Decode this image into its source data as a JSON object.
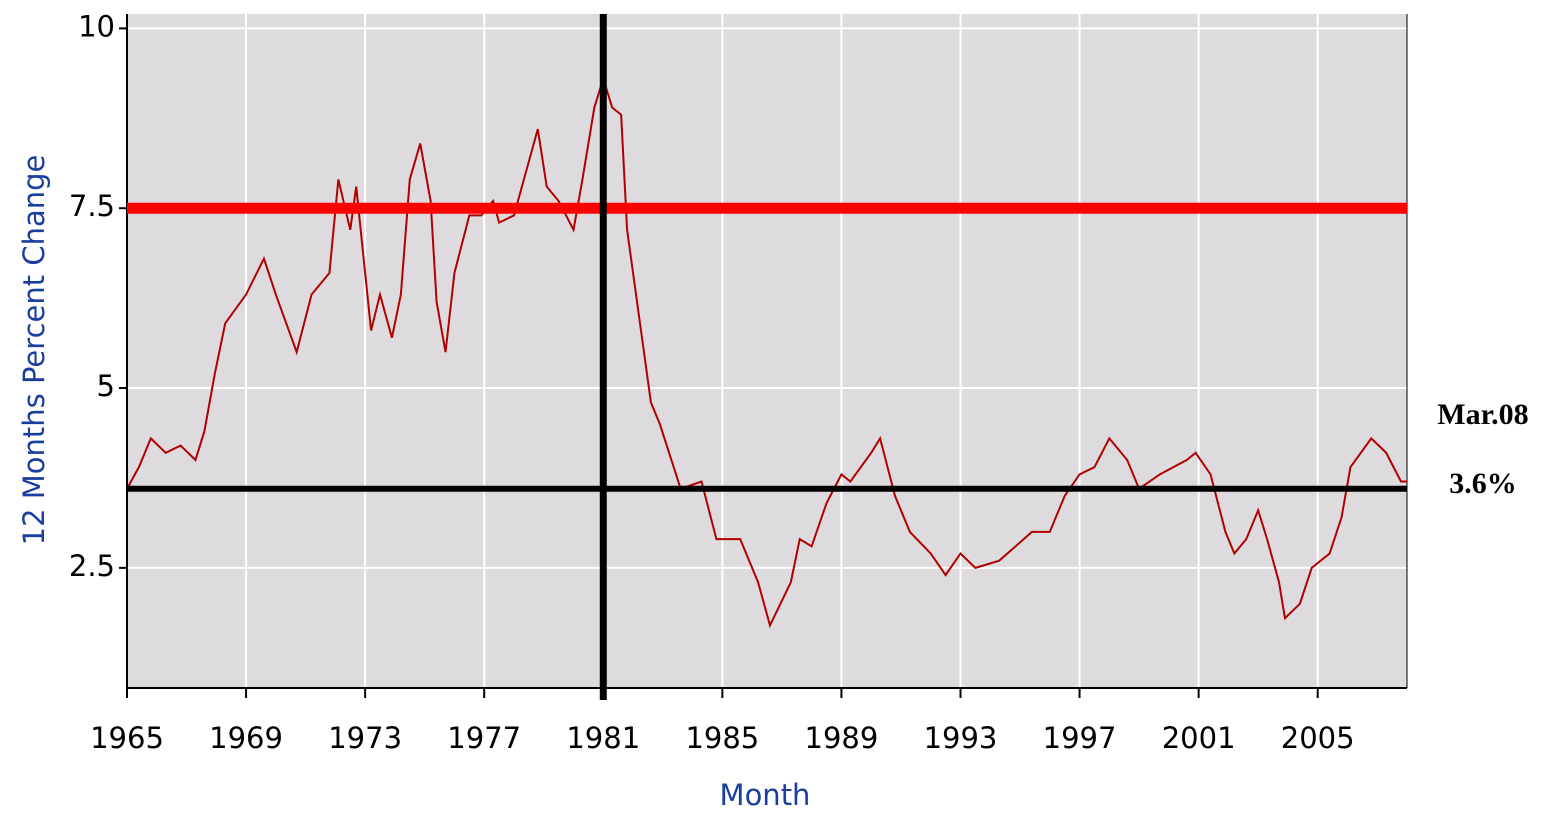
{
  "chart_data": {
    "type": "line",
    "ylabel": "12 Months Percent Change",
    "xlabel": "Month",
    "x": [
      1965,
      1965.4,
      1965.8,
      1966.3,
      1966.8,
      1967.3,
      1967.6,
      1967.95,
      1968.3,
      1969,
      1969.6,
      1970,
      1970.7,
      1971.2,
      1971.8,
      1972.1,
      1972.5,
      1972.7,
      1973.2,
      1973.5,
      1973.9,
      1974.2,
      1974.5,
      1974.85,
      1975.2,
      1975.4,
      1975.7,
      1976,
      1976.5,
      1976.9,
      1977.3,
      1977.5,
      1978,
      1978.4,
      1978.8,
      1979.1,
      1979.5,
      1980,
      1980.3,
      1980.7,
      1981,
      1981.3,
      1981.6,
      1981.8,
      1982.2,
      1982.6,
      1982.9,
      1983.6,
      1984.3,
      1984.8,
      1985.6,
      1986.2,
      1986.6,
      1987.3,
      1987.6,
      1988,
      1988.5,
      1989,
      1989.3,
      1990,
      1990.3,
      1990.8,
      1991.3,
      1992,
      1992.5,
      1993,
      1993.5,
      1994.3,
      1995.4,
      1996,
      1996.5,
      1997,
      1997.5,
      1998,
      1998.6,
      1999,
      1999.7,
      2000.6,
      2000.9,
      2001.4,
      2001.9,
      2002.2,
      2002.6,
      2003,
      2003.3,
      2003.7,
      2003.9,
      2004.4,
      2004.8,
      2005.4,
      2005.8,
      2006.1,
      2006.8,
      2007.3,
      2007.8,
      2008
    ],
    "series": [
      {
        "color": "#b00000",
        "values": [
          3.6,
          3.9,
          4.3,
          4.1,
          4.2,
          4.0,
          4.4,
          5.2,
          5.9,
          6.3,
          6.8,
          6.3,
          5.5,
          6.3,
          6.6,
          7.9,
          7.2,
          7.8,
          5.8,
          6.3,
          5.7,
          6.3,
          7.9,
          8.4,
          7.6,
          6.2,
          5.5,
          6.6,
          7.4,
          7.4,
          7.6,
          7.3,
          7.4,
          8.0,
          8.6,
          7.8,
          7.6,
          7.2,
          7.9,
          8.9,
          9.3,
          8.9,
          8.8,
          7.2,
          6.0,
          4.8,
          4.5,
          3.6,
          3.7,
          2.9,
          2.9,
          2.3,
          1.7,
          2.3,
          2.9,
          2.8,
          3.4,
          3.8,
          3.7,
          4.1,
          4.3,
          3.5,
          3.0,
          2.7,
          2.4,
          2.7,
          2.5,
          2.6,
          3.0,
          3.0,
          3.5,
          3.8,
          3.9,
          4.3,
          4.0,
          3.6,
          3.8,
          4.0,
          4.1,
          3.8,
          3.0,
          2.7,
          2.9,
          3.3,
          2.9,
          2.3,
          1.8,
          2.0,
          2.5,
          2.7,
          3.2,
          3.9,
          4.3,
          4.1,
          3.7,
          3.7
        ]
      }
    ],
    "xlim": [
      1965,
      2008
    ],
    "ylim": [
      0.83,
      10.2
    ],
    "xticks": [
      1965,
      1969,
      1973,
      1977,
      1981,
      1985,
      1989,
      1993,
      1997,
      2001,
      2005
    ],
    "yticks": [
      2.5,
      5,
      7.5,
      10
    ],
    "grid": true,
    "reference_lines": [
      {
        "y": 7.5,
        "color": "#ff0000"
      },
      {
        "y": 3.6,
        "color": "#000000"
      },
      {
        "x": 1981,
        "color": "#000000"
      }
    ],
    "annotations": [
      "Mar.08",
      "3.6%"
    ]
  }
}
